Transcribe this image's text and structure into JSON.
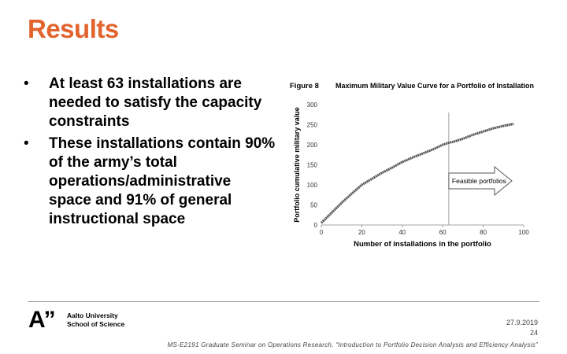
{
  "slide": {
    "title": "Results",
    "bullets": [
      "At least 63 installations are needed to satisfy the capacity constraints",
      "These installations contain 90% of the army’s total operations/administrative space and 91% of general instructional space"
    ],
    "bullet_symbol": "•"
  },
  "figure": {
    "label": "Figure 8",
    "caption": "Maximum Military Value Curve for a Portfolio of Installation",
    "arrow_label": "Feasible portfolios"
  },
  "chart_data": {
    "type": "line",
    "title": "",
    "xlabel": "Number of installations in the portfolio",
    "ylabel": "Portfolio cumulative military value",
    "xlim": [
      0,
      100
    ],
    "ylim": [
      0,
      300
    ],
    "xticks": [
      0,
      20,
      40,
      60,
      80,
      100
    ],
    "yticks": [
      0,
      50,
      100,
      150,
      200,
      250,
      300
    ],
    "grid": false,
    "series": [
      {
        "x": [
          0,
          5,
          10,
          15,
          20,
          25,
          30,
          35,
          40,
          45,
          50,
          55,
          60,
          63,
          65,
          70,
          75,
          80,
          85,
          90,
          95
        ],
        "y": [
          5,
          30,
          55,
          78,
          100,
          115,
          130,
          143,
          157,
          168,
          178,
          188,
          200,
          205,
          207,
          215,
          225,
          233,
          241,
          247,
          252
        ],
        "color": "#555555"
      }
    ],
    "vline_x": 63
  },
  "footer": {
    "logo_mark": "A”",
    "university": "Aalto University",
    "school": "School of Science",
    "date": "27.9.2019",
    "page_number": "24",
    "course": "MS-E2191 Graduate Seminar on Operations Research, “Introduction to Portfolio Decision Analysis and Efficiency Analysis”"
  }
}
